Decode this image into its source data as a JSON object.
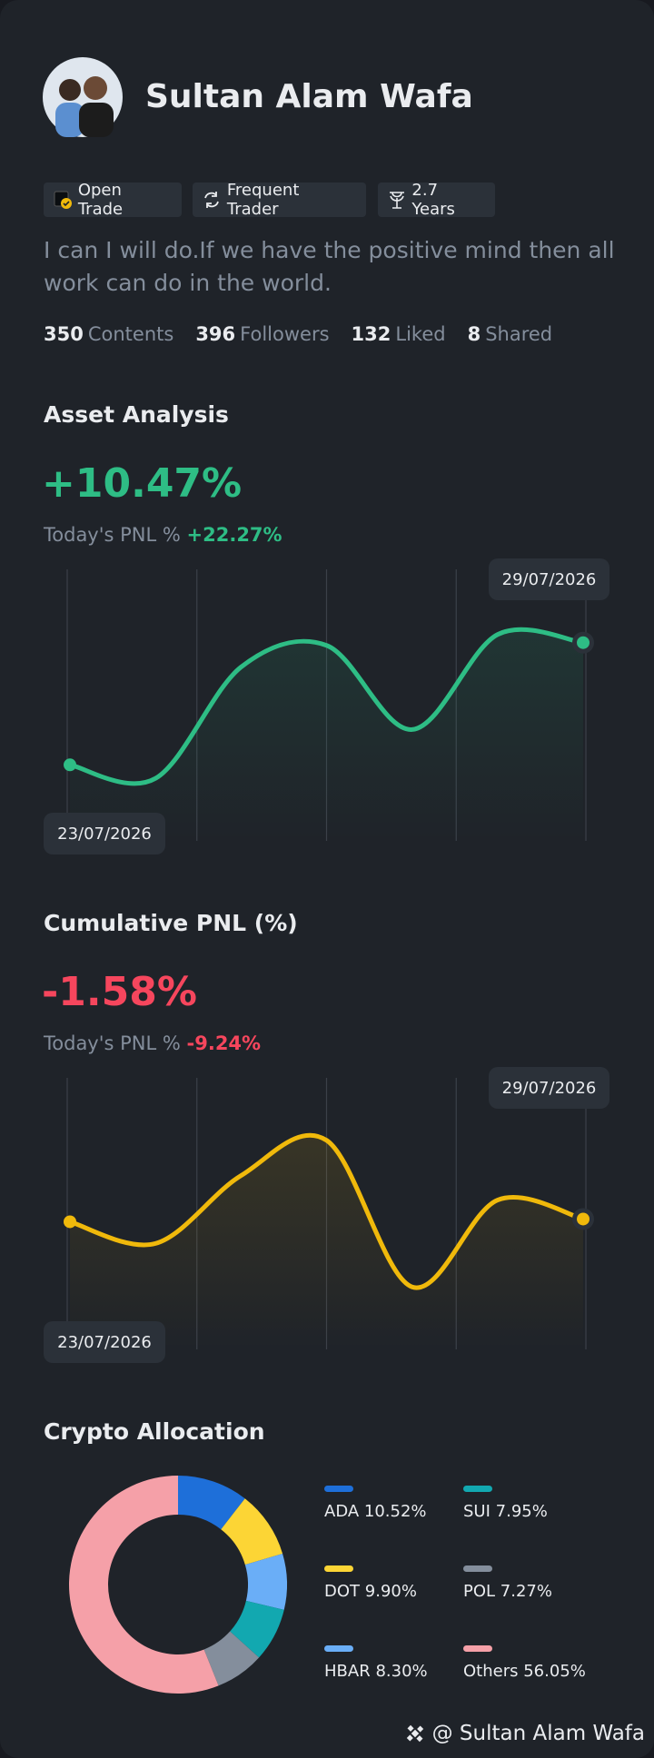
{
  "profile": {
    "name": "Sultan Alam Wafa",
    "badges": [
      "Open Trade",
      "Frequent Trader",
      "2.7 Years"
    ],
    "bio": "I can I will do.If we have the positive mind then all work can do in the world.",
    "stats": [
      {
        "value": 350,
        "label": "Contents"
      },
      {
        "value": 396,
        "label": "Followers"
      },
      {
        "value": 132,
        "label": "Liked"
      },
      {
        "value": 8,
        "label": "Shared"
      }
    ]
  },
  "chart_data": [
    {
      "type": "line",
      "title": "Asset Analysis",
      "headline": "+10.47%",
      "pnl_label": "Today's PNL %",
      "pnl_value": "+22.27%",
      "headline_color": "#2ebd85",
      "categories": [
        "23/07/2026",
        null,
        null,
        null,
        null,
        null,
        "29/07/2026"
      ],
      "values": [
        28,
        23,
        64,
        72,
        41,
        76,
        73
      ],
      "color": "#2ebd85",
      "ylim": [
        0,
        100
      ]
    },
    {
      "type": "line",
      "title": "Cumulative PNL (%)",
      "headline": "-1.58%",
      "pnl_label": "Today's PNL %",
      "pnl_value": "-9.24%",
      "headline_color": "#f6465d",
      "categories": [
        "23/07/2026",
        null,
        null,
        null,
        null,
        null,
        "29/07/2026"
      ],
      "values": [
        47,
        39,
        64,
        77,
        23,
        55,
        48
      ],
      "color": "#f0b90b",
      "ylim": [
        0,
        100
      ]
    },
    {
      "type": "pie",
      "title": "Crypto Allocation",
      "categories": [
        "ADA",
        "DOT",
        "HBAR",
        "SUI",
        "POL",
        "Others"
      ],
      "values": [
        10.52,
        9.9,
        8.3,
        7.95,
        7.27,
        56.05
      ],
      "value_labels": [
        "10.52%",
        "9.90%",
        "8.30%",
        "7.95%",
        "7.27%",
        "56.05%"
      ],
      "colors": [
        "#1e6fd9",
        "#fcd535",
        "#6aaef7",
        "#12a8b0",
        "#848e9c",
        "#f5a0a8"
      ]
    }
  ],
  "footer": "@ Sultan Alam Wafa"
}
